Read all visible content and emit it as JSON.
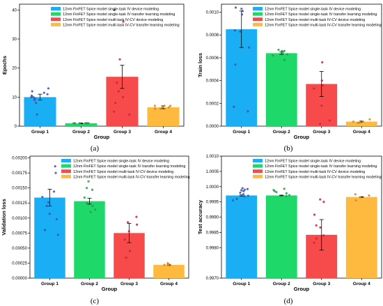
{
  "legend": [
    "12nm FinFET Spice model single-task IV device modeling",
    "12nm FinFET Spice model single-task IV transfer learning modeling",
    "12nm FinFET Spice model multi-task IV-CV device modeling",
    "12nm FinFET Spice model multi-task IV-CV transfer learning modeling"
  ],
  "colors": [
    "#1aaef5",
    "#1fd86a",
    "#f74a4a",
    "#fdba3f"
  ],
  "point_colors": [
    "#3a55a8",
    "#2a9a4a",
    "#c2273a",
    "#c98a2a"
  ],
  "chart_data": [
    {
      "type": "bar",
      "caption": "(a)",
      "categories": [
        "Group 1",
        "Group 2",
        "Group 3",
        "Group 4"
      ],
      "values": [
        10.0,
        1.0,
        17.0,
        6.5
      ],
      "errors": [
        1.0,
        0.1,
        4.0,
        0.5
      ],
      "points": [
        [
          10,
          9,
          10.5,
          8,
          9.5,
          12,
          13,
          10,
          4,
          11,
          11.5
        ],
        [
          1,
          1,
          1,
          1,
          1,
          1,
          1
        ],
        [
          40,
          36,
          23,
          12,
          10,
          8,
          5,
          4,
          15
        ],
        [
          7,
          6.5,
          6,
          7,
          6,
          6.5,
          7
        ]
      ],
      "xlabel": "Group",
      "ylabel": "Epochs",
      "ylim": [
        0,
        42
      ],
      "yticks": [
        0,
        10,
        20,
        30,
        40
      ],
      "yticklabels": [
        "0",
        "10",
        "20",
        "30",
        "40"
      ]
    },
    {
      "type": "bar",
      "caption": "(b)",
      "categories": [
        "Group 1",
        "Group 2",
        "Group 3",
        "Group 4"
      ],
      "values": [
        0.00085,
        0.00064,
        0.00037,
        4e-05
      ],
      "errors": [
        0.00016,
        1e-05,
        0.00011,
        5e-06
      ],
      "points": [
        [
          0.00104,
          0.00103,
          0.00101,
          0.00084,
          0.00083,
          0.00069,
          0.00054,
          0.00017,
          0.00013,
          0.00098
        ],
        [
          0.00067,
          0.00066,
          0.00065,
          0.00063,
          0.00062,
          0.00058,
          0.00066
        ],
        [
          0.00056,
          0.0004,
          0.00036,
          0.00033,
          0.00018,
          5e-05,
          2e-05
        ],
        [
          6e-05,
          4e-05,
          3e-05,
          3e-05,
          4e-05
        ]
      ],
      "xlabel": "Group",
      "ylabel": "Train loss",
      "ylim": [
        0,
        0.00107
      ],
      "yticks": [
        0,
        0.0002,
        0.0004,
        0.0006,
        0.0008,
        0.001
      ],
      "yticklabels": [
        "0.0000",
        "0.0002",
        "0.0004",
        "0.0006",
        "0.0008",
        "0.0010"
      ]
    },
    {
      "type": "bar",
      "caption": "(c)",
      "categories": [
        "Group 1",
        "Group 2",
        "Group 3",
        "Group 4"
      ],
      "values": [
        0.00134,
        0.00128,
        0.00075,
        0.00022
      ],
      "errors": [
        0.00014,
        5e-05,
        0.00016,
        1e-05
      ],
      "points": [
        [
          0.00186,
          0.00175,
          0.00144,
          0.00135,
          0.00126,
          0.0012,
          0.00107,
          0.00098,
          0.0008,
          0.00072
        ],
        [
          0.00161,
          0.0015,
          0.00147,
          0.00134,
          0.00125,
          0.0012,
          0.00114,
          0.0011
        ],
        [
          0.00102,
          0.00093,
          0.00089,
          0.00078,
          0.00064,
          0.00045,
          0.00034
        ],
        [
          0.00025,
          0.00022,
          0.00022,
          0.00022,
          0.00023
        ]
      ],
      "xlabel": "Group",
      "ylabel": "Validation loss",
      "ylim": [
        0,
        0.00203
      ],
      "yticks": [
        0,
        0.00025,
        0.0005,
        0.00075,
        0.001,
        0.00125,
        0.0015,
        0.00175,
        0.002
      ],
      "yticklabels": [
        "0.00000",
        "0.00025",
        "0.00050",
        "0.00075",
        "0.00100",
        "0.00125",
        "0.00150",
        "0.00175",
        "0.00200"
      ]
    },
    {
      "type": "bar",
      "caption": "(d)",
      "categories": [
        "Group 1",
        "Group 2",
        "Group 3",
        "Group 4"
      ],
      "values": [
        0.99971,
        0.99971,
        0.99842,
        0.99966
      ],
      "errors": [
        2e-05,
        1e-05,
        0.0005,
        1e-05
      ],
      "points": [
        [
          0.99995,
          0.99992,
          0.99988,
          0.99985,
          0.9998,
          0.99975,
          0.9997,
          0.99968,
          0.9996,
          0.99955,
          0.9999
        ],
        [
          0.99993,
          0.99989,
          0.99985,
          0.99978,
          0.99972,
          0.99969,
          0.99982
        ],
        [
          0.99958,
          0.9995,
          0.99908,
          0.99873,
          0.99866,
          0.9984,
          0.9983,
          0.99816
        ],
        [
          0.99975,
          0.99971,
          0.99965,
          0.99955
        ]
      ],
      "xlabel": "Group",
      "ylabel": "Test accuracy",
      "ylim": [
        0.997,
        1.001
      ],
      "yticks": [
        0.997,
        0.998,
        0.9985,
        0.999,
        0.9995,
        1.0,
        1.0005,
        1.001
      ],
      "yticklabels": [
        "0.9970",
        "0.9980",
        "0.9985",
        "0.9990",
        "0.9995",
        "1.0000",
        "1.0005",
        "1.0010"
      ]
    }
  ]
}
